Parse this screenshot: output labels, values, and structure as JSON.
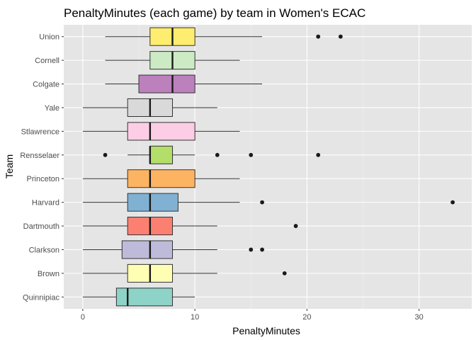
{
  "chart_data": {
    "type": "boxplot",
    "orientation": "horizontal",
    "title": "PenaltyMinutes (each game) by team in Women's ECAC",
    "xlabel": "PenaltyMinutes",
    "ylabel": "Team",
    "xlim": [
      -1.7,
      34.7
    ],
    "x_ticks": [
      0,
      10,
      20,
      30
    ],
    "grid": true,
    "legend": "none",
    "background": "#e5e5e5",
    "categories": [
      "Quinnipiac",
      "Brown",
      "Clarkson",
      "Dartmouth",
      "Harvard",
      "Princeton",
      "Rensselaer",
      "Stlawrence",
      "Yale",
      "Colgate",
      "Cornell",
      "Union"
    ],
    "boxes": [
      {
        "team": "Quinnipiac",
        "whisker_low": 0,
        "q1": 3,
        "median": 4,
        "q3": 8,
        "whisker_high": 10,
        "outliers": [],
        "color": "#8dd3c7"
      },
      {
        "team": "Brown",
        "whisker_low": 0,
        "q1": 4,
        "median": 6,
        "q3": 8,
        "whisker_high": 12,
        "outliers": [
          18
        ],
        "color": "#ffffb3"
      },
      {
        "team": "Clarkson",
        "whisker_low": 0,
        "q1": 3.5,
        "median": 6,
        "q3": 8,
        "whisker_high": 12,
        "outliers": [
          15,
          16
        ],
        "color": "#bebada"
      },
      {
        "team": "Dartmouth",
        "whisker_low": 0,
        "q1": 4,
        "median": 6,
        "q3": 8,
        "whisker_high": 12,
        "outliers": [
          19
        ],
        "color": "#fb8072"
      },
      {
        "team": "Harvard",
        "whisker_low": 0,
        "q1": 4,
        "median": 6,
        "q3": 8.5,
        "whisker_high": 14,
        "outliers": [
          16,
          33
        ],
        "color": "#80b1d3"
      },
      {
        "team": "Princeton",
        "whisker_low": 0,
        "q1": 4,
        "median": 6,
        "q3": 10,
        "whisker_high": 14,
        "outliers": [],
        "color": "#fdb462"
      },
      {
        "team": "Rensselaer",
        "whisker_low": 4,
        "q1": 6,
        "median": 6,
        "q3": 8,
        "whisker_high": 10,
        "outliers": [
          2,
          12,
          15,
          21
        ],
        "color": "#b3de69"
      },
      {
        "team": "Stlawrence",
        "whisker_low": 0,
        "q1": 4,
        "median": 6,
        "q3": 10,
        "whisker_high": 14,
        "outliers": [],
        "color": "#fccde5"
      },
      {
        "team": "Yale",
        "whisker_low": 0,
        "q1": 4,
        "median": 6,
        "q3": 8,
        "whisker_high": 12,
        "outliers": [],
        "color": "#d9d9d9"
      },
      {
        "team": "Colgate",
        "whisker_low": 2,
        "q1": 5,
        "median": 8,
        "q3": 10,
        "whisker_high": 16,
        "outliers": [],
        "color": "#bc80bd"
      },
      {
        "team": "Cornell",
        "whisker_low": 2,
        "q1": 6,
        "median": 8,
        "q3": 10,
        "whisker_high": 14,
        "outliers": [],
        "color": "#ccebc5"
      },
      {
        "team": "Union",
        "whisker_low": 2,
        "q1": 6,
        "median": 8,
        "q3": 10,
        "whisker_high": 16,
        "outliers": [
          21,
          23
        ],
        "color": "#ffed6f"
      }
    ]
  }
}
